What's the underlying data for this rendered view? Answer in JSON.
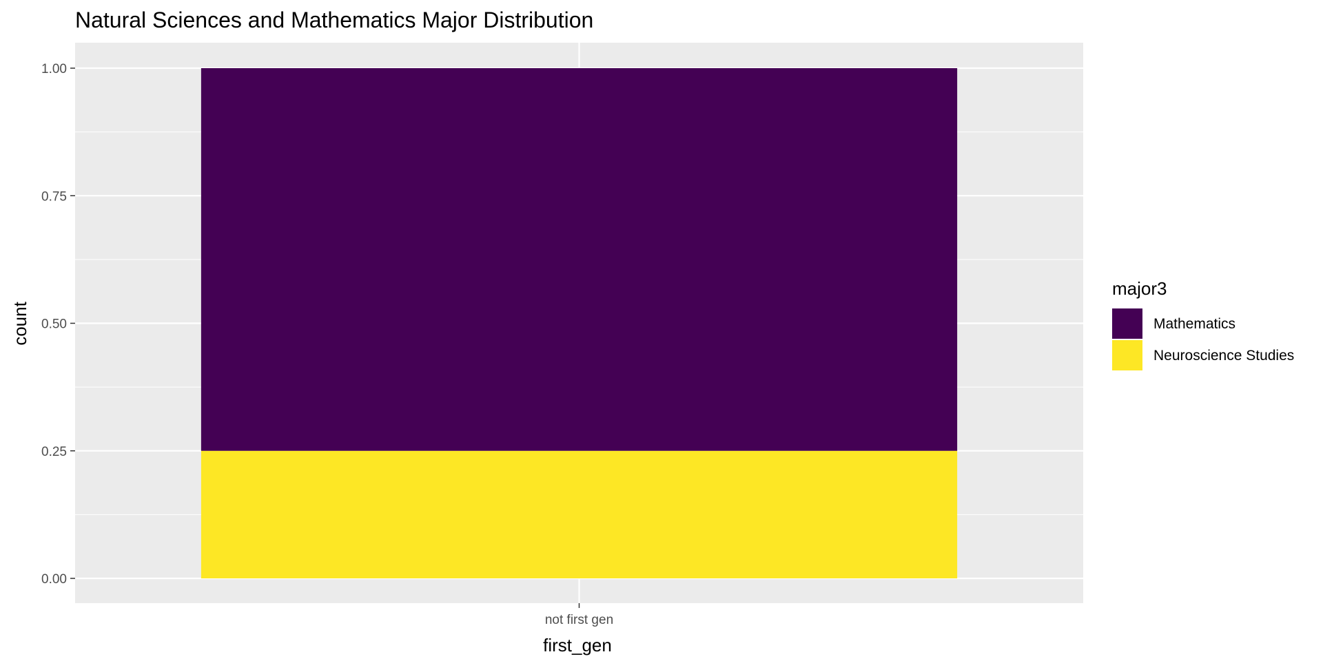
{
  "chart_data": {
    "type": "bar",
    "stacked": true,
    "title": "Natural Sciences and Mathematics Major Distribution",
    "xlabel": "first_gen",
    "ylabel": "count",
    "categories": [
      "not first gen"
    ],
    "ylim": [
      0,
      1
    ],
    "yticks": [
      0,
      0.25,
      0.5,
      0.75,
      1
    ],
    "ytick_labels": [
      "0.00",
      "0.25",
      "0.50",
      "0.75",
      "1.00"
    ],
    "grid": true,
    "legend_title": "major3",
    "legend_position": "right",
    "series": [
      {
        "name": "Neuroscience Studies",
        "values": [
          0.25
        ],
        "color": "#FDE725"
      },
      {
        "name": "Mathematics",
        "values": [
          0.75
        ],
        "color": "#440154"
      }
    ],
    "legend_order": [
      "Mathematics",
      "Neuroscience Studies"
    ],
    "panel_background": "#EBEBEB",
    "grid_color": "#FFFFFF"
  }
}
